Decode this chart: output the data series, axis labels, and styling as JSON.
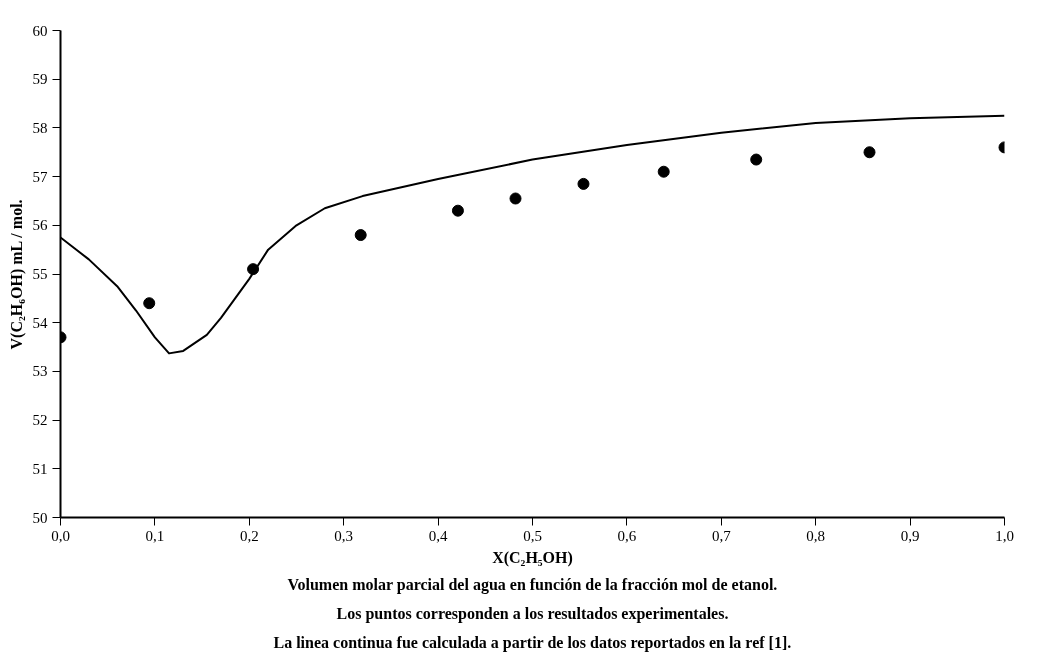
{
  "chart_data": {
    "type": "scatter",
    "xlabel": "X(C₂H₅OH)",
    "ylabel": "V(C₂H₆OH) mL / mol.",
    "annotations": [
      "Volumen molar parcial del agua en función de la fracción mol de etanol.",
      "Los puntos corresponden a los resultados experimentales.",
      "La linea continua fue calculada a partir de los datos reportados en la ref [1]."
    ],
    "xlim": [
      0,
      1
    ],
    "ylim": [
      50,
      60
    ],
    "xticks": [
      {
        "value": 0,
        "label": "0,0"
      },
      {
        "value": 0.1,
        "label": "0,1"
      },
      {
        "value": 0.2,
        "label": "0,2"
      },
      {
        "value": 0.3,
        "label": "0,3"
      },
      {
        "value": 0.4,
        "label": "0,4"
      },
      {
        "value": 0.5,
        "label": "0,5"
      },
      {
        "value": 0.6,
        "label": "0,6"
      },
      {
        "value": 0.7,
        "label": "0,7"
      },
      {
        "value": 0.8,
        "label": "0,8"
      },
      {
        "value": 0.9,
        "label": "0,9"
      },
      {
        "value": 1,
        "label": "1,0"
      }
    ],
    "yticks": [
      50,
      51,
      52,
      53,
      54,
      55,
      56,
      57,
      58,
      59,
      60
    ],
    "grid": false,
    "series": [
      {
        "marker": "circle",
        "color": "#000000",
        "x": [
          0,
          0.094,
          0.204,
          0.318,
          0.421,
          0.482,
          0.554,
          0.639,
          0.737,
          0.857,
          1.0
        ],
        "values": [
          53.7,
          54.4,
          55.1,
          55.8,
          56.3,
          56.55,
          56.85,
          57.1,
          57.35,
          57.5,
          57.6
        ]
      },
      {
        "type": "line",
        "marker": "none",
        "line_style": "solid",
        "color": "#000000",
        "x": [
          0,
          0.03,
          0.06,
          0.08,
          0.1,
          0.115,
          0.13,
          0.155,
          0.17,
          0.185,
          0.2,
          0.22,
          0.25,
          0.28,
          0.32,
          0.4,
          0.5,
          0.6,
          0.7,
          0.8,
          0.9,
          1.0
        ],
        "values": [
          55.75,
          55.3,
          54.75,
          54.25,
          53.7,
          53.37,
          53.42,
          53.75,
          54.1,
          54.5,
          54.9,
          55.5,
          56.0,
          56.35,
          56.6,
          56.95,
          57.35,
          57.65,
          57.9,
          58.1,
          58.2,
          58.25
        ]
      }
    ]
  }
}
